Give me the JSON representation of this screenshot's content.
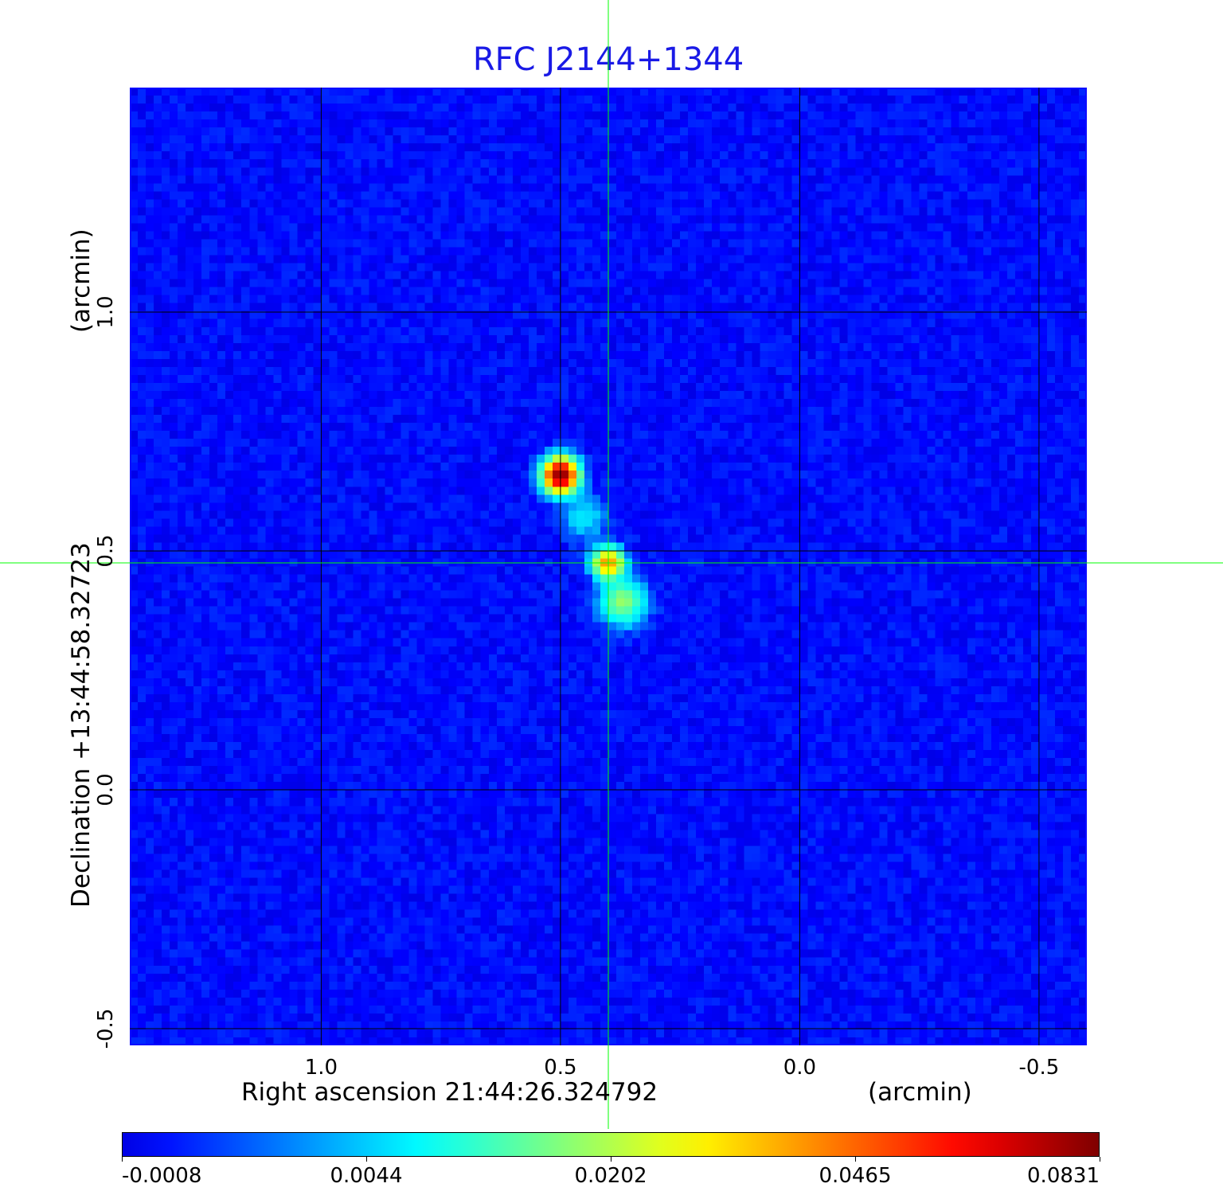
{
  "chart_data": {
    "type": "heatmap",
    "title": "RFC J2144+1344",
    "xlabel": "Right ascension  21:44:26.324792",
    "xunit": "(arcmin)",
    "ylabel": "Declination  +13:44:58.32723",
    "yunit": "(arcmin)",
    "xlim": [
      1.4,
      -0.6
    ],
    "ylim": [
      -0.535,
      1.47
    ],
    "xticks": [
      {
        "value": 1.0,
        "label": "1.0"
      },
      {
        "value": 0.5,
        "label": "0.5"
      },
      {
        "value": 0.0,
        "label": "0.0"
      },
      {
        "value": -0.5,
        "label": "-0.5"
      }
    ],
    "yticks": [
      {
        "value": 1.0,
        "label": "1.0"
      },
      {
        "value": 0.5,
        "label": "0.5"
      },
      {
        "value": 0.0,
        "label": "0.0"
      },
      {
        "value": -0.5,
        "label": "-0.5"
      }
    ],
    "grid": true,
    "crosshair": {
      "x": 0.4,
      "y": 0.475,
      "color": "#00ff00"
    },
    "colormap": "jet",
    "colorbar": {
      "position": "bottom",
      "ticks": [
        "-0.0008",
        "0.0044",
        "0.0202",
        "0.0465",
        "0.0831"
      ],
      "tick_values": [
        -0.0008,
        0.0044,
        0.0202,
        0.0465,
        0.0831
      ]
    },
    "background_level": 0.0,
    "sources": [
      {
        "ra": 0.5,
        "dec": 0.658,
        "peak": 0.0831,
        "sigma": 0.022
      },
      {
        "ra": 0.4,
        "dec": 0.475,
        "peak": 0.042,
        "sigma": 0.02
      },
      {
        "ra": 0.37,
        "dec": 0.393,
        "peak": 0.018,
        "sigma": 0.03
      },
      {
        "ra": 0.45,
        "dec": 0.57,
        "peak": 0.006,
        "sigma": 0.03
      }
    ]
  }
}
